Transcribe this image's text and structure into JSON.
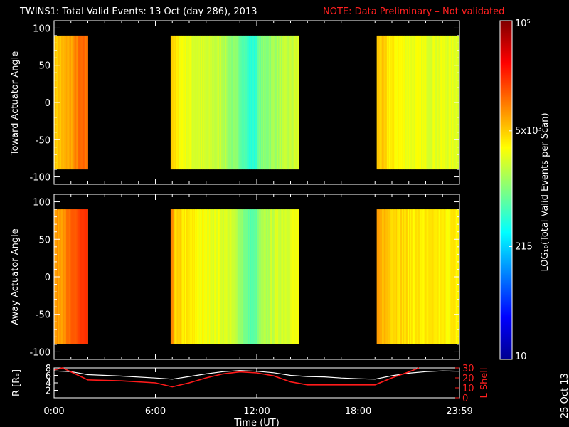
{
  "header": {
    "title": "TWINS1: Total Valid Events: 13 Oct (day 286), 2013",
    "note": "NOTE: Data Preliminary – Not validated"
  },
  "stamp": "25 Oct 13",
  "colorbar": {
    "label": "LOG₁₀(Total Valid Events per Scan)",
    "tick_labels": [
      "10⁵",
      "5x10³",
      "215",
      "10"
    ],
    "tick_values": [
      100000,
      5000,
      215,
      10
    ],
    "range": [
      10,
      100000
    ],
    "scale": "log",
    "colormap": "jet"
  },
  "panels": [
    {
      "ylabel": "Toward Actuator Angle",
      "ytick_labels": [
        "100",
        "50",
        "0",
        "-50",
        "-100"
      ],
      "ylim": [
        -110,
        110
      ]
    },
    {
      "ylabel": "Away Actuator Angle",
      "ytick_labels": [
        "100",
        "50",
        "0",
        "-50",
        "-100"
      ],
      "ylim": [
        -110,
        110
      ]
    }
  ],
  "orbit": {
    "ylabel_left": "R [R",
    "ylabel_left_sub": "E",
    "ylabel_left_end": "]",
    "ylabel_right": "L Shell",
    "left_ticks": [
      "8",
      "6",
      "4",
      "2"
    ],
    "right_ticks": [
      "30",
      "20",
      "10",
      "0"
    ]
  },
  "xaxis": {
    "label": "Time (UT)",
    "tick_labels": [
      "0:00",
      "6:00",
      "12:00",
      "18:00",
      "23:59"
    ]
  },
  "chart_data": {
    "type": "heatmap",
    "title": "TWINS1: Total Valid Events: 13 Oct (day 286), 2013",
    "x_unit": "hours UT",
    "xlim": [
      0,
      24
    ],
    "x_ticks": [
      0,
      6,
      12,
      18,
      24
    ],
    "y_unit": "degrees",
    "y_ticks": [
      100,
      50,
      0,
      -50,
      -100
    ],
    "y_data_range": [
      -90,
      90
    ],
    "data_blocks": [
      {
        "start": 0.0,
        "end": 2.0
      },
      {
        "start": 6.9,
        "end": 14.5
      },
      {
        "start": 19.1,
        "end": 24.0
      }
    ],
    "log_level_profile": {
      "hours": [
        0.0,
        0.5,
        1.0,
        1.5,
        2.0,
        6.9,
        7.2,
        8.0,
        9.0,
        10.0,
        10.5,
        11.0,
        11.5,
        11.8,
        12.2,
        13.0,
        14.0,
        14.5,
        19.1,
        20.0,
        21.0,
        22.0,
        23.0,
        24.0
      ],
      "toward": [
        3.7,
        3.75,
        3.85,
        4.05,
        4.05,
        3.8,
        3.55,
        3.4,
        3.3,
        3.25,
        3.05,
        2.95,
        2.7,
        2.65,
        2.95,
        3.15,
        3.25,
        3.35,
        3.75,
        3.55,
        3.45,
        3.4,
        3.4,
        3.4
      ],
      "away": [
        3.85,
        3.95,
        4.05,
        4.25,
        4.25,
        4.0,
        3.65,
        3.55,
        3.45,
        3.4,
        3.3,
        3.15,
        2.85,
        2.8,
        3.1,
        3.3,
        3.4,
        3.45,
        3.85,
        3.7,
        3.6,
        3.55,
        3.55,
        3.55
      ]
    },
    "orbit_series": [
      {
        "name": "R",
        "axis": "left",
        "ylim": [
          0,
          8
        ],
        "x": [
          0,
          1,
          2,
          4,
          6,
          7,
          8,
          9,
          10,
          11,
          12,
          13,
          14,
          15,
          16,
          17,
          18,
          19,
          20,
          21,
          22,
          23,
          24
        ],
        "y": [
          7.2,
          7.0,
          6.2,
          5.8,
          5.3,
          5.0,
          5.7,
          6.4,
          7.0,
          7.3,
          7.1,
          6.7,
          6.0,
          5.7,
          5.6,
          5.3,
          5.1,
          5.0,
          5.9,
          6.6,
          7.0,
          7.2,
          7.1
        ]
      },
      {
        "name": "L Shell",
        "axis": "right",
        "ylim": [
          0,
          30
        ],
        "x": [
          0,
          0.5,
          1,
          2,
          4,
          6,
          7,
          8,
          9,
          10,
          11,
          12,
          13,
          14,
          15,
          16,
          17,
          18,
          19,
          20,
          21,
          21.6
        ],
        "y": [
          28,
          30,
          26,
          18,
          17,
          15,
          11,
          15,
          20,
          24,
          26,
          25,
          22,
          16,
          13,
          13,
          13,
          13,
          13,
          20,
          26,
          30
        ]
      }
    ]
  }
}
